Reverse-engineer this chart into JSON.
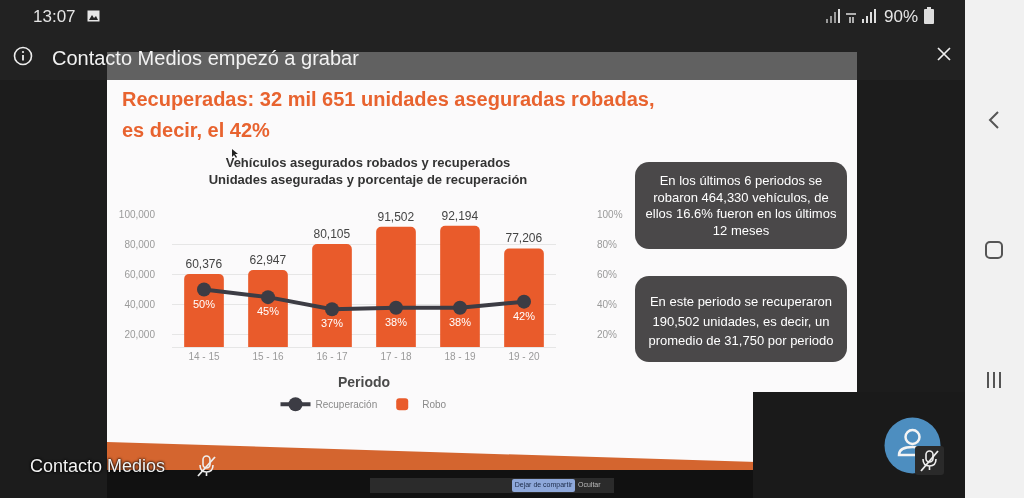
{
  "chart_data": {
    "type": "bar",
    "title": "Vehículos asegurados robados y recuperados",
    "subtitle": "Unidades aseguradas y porcentaje de recuperación",
    "xlabel": "Periodo",
    "categories": [
      "14 - 15",
      "15 - 16",
      "16 - 17",
      "17 - 18",
      "18 - 19",
      "19 - 20"
    ],
    "series": [
      {
        "name": "Recuperación",
        "type": "line",
        "axis": "y2",
        "color": "#3c3c44",
        "values": [
          50,
          45,
          37,
          38,
          38,
          42
        ],
        "value_labels": [
          "50%",
          "45%",
          "37%",
          "38%",
          "38%",
          "42%"
        ]
      },
      {
        "name": "Robo",
        "color": "#e95b2b",
        "values": [
          60376,
          62947,
          80105,
          91502,
          92194,
          77206
        ],
        "value_labels": [
          "60,376",
          "62,947",
          "80,105",
          "91,502",
          "92,194",
          "77,206"
        ]
      }
    ],
    "ylim": [
      12000,
      100000
    ],
    "yticks": [
      {
        "value": 20000,
        "label": "20,000"
      },
      {
        "value": 40000,
        "label": "40,000"
      },
      {
        "value": 60000,
        "label": "60,000"
      },
      {
        "value": 80000,
        "label": "80,000"
      },
      {
        "value": 100000,
        "label": "100,000"
      }
    ],
    "y2lim": [
      12,
      100
    ],
    "y2ticks": [
      {
        "value": 20,
        "label": "20%"
      },
      {
        "value": 40,
        "label": "40%"
      },
      {
        "value": 60,
        "label": "60%"
      },
      {
        "value": 80,
        "label": "80%"
      },
      {
        "value": 100,
        "label": "100%"
      }
    ],
    "grid": "y",
    "legend": "bottom",
    "marker": "circle",
    "annotations": [
      "Recuperadas: 32 mil 651 unidades aseguradas robadas, es decir, el 42%",
      "En los últimos 6 periodos se robaron 464,330 vehículos, de ellos 16.6% fueron en los últimos 12 meses",
      "En este periodo se recuperaron 190,502 unidades, es decir, un promedio de 31,750 por periodo",
      "13:07",
      "90%",
      "Contacto Medios empezó a grabar",
      "Contacto Medios",
      "Dejar de compartir",
      "Ocultar"
    ]
  }
}
